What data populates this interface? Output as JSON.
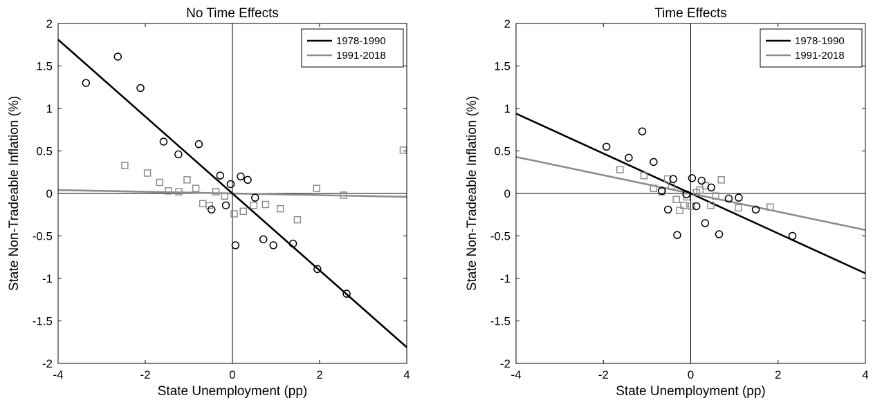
{
  "chart_data": [
    {
      "type": "scatter",
      "title": "No Time Effects",
      "xlabel": "State Unemployment (pp)",
      "ylabel": "State Non-Tradeable Inflation (%)",
      "xlim": [
        -4,
        4
      ],
      "ylim": [
        -2,
        2
      ],
      "xticks": [
        -4,
        -2,
        0,
        2,
        4
      ],
      "yticks": [
        -2,
        -1.5,
        -1,
        -0.5,
        0,
        0.5,
        1,
        1.5,
        2
      ],
      "xtick_labels": [
        "-4",
        "-2",
        "0",
        "2",
        "4"
      ],
      "ytick_labels": [
        "-2",
        "-1.5",
        "-1",
        "-0.5",
        "0",
        "0.5",
        "1",
        "1.5",
        "2"
      ],
      "grid": false,
      "legend_position": "top-right",
      "series": [
        {
          "name": "1978-1990",
          "color": "#000000",
          "marker": "circle",
          "fit_line": [
            [
              -4,
              1.81
            ],
            [
              4,
              -1.81
            ]
          ],
          "points": [
            [
              -3.36,
              1.3
            ],
            [
              -2.63,
              1.61
            ],
            [
              -2.11,
              1.24
            ],
            [
              -1.58,
              0.61
            ],
            [
              -1.24,
              0.46
            ],
            [
              -0.77,
              0.58
            ],
            [
              -0.28,
              0.21
            ],
            [
              -0.15,
              -0.14
            ],
            [
              -0.48,
              -0.19
            ],
            [
              -0.04,
              0.11
            ],
            [
              0.19,
              0.2
            ],
            [
              0.35,
              0.16
            ],
            [
              0.52,
              -0.05
            ],
            [
              0.07,
              -0.61
            ],
            [
              0.71,
              -0.54
            ],
            [
              0.94,
              -0.61
            ],
            [
              1.39,
              -0.59
            ],
            [
              1.95,
              -0.89
            ],
            [
              2.62,
              -1.18
            ]
          ]
        },
        {
          "name": "1991-2018",
          "color": "#8c8c8c",
          "marker": "square",
          "fit_line": [
            [
              -4,
              0.04
            ],
            [
              4,
              -0.04
            ]
          ],
          "points": [
            [
              -2.47,
              0.33
            ],
            [
              -1.95,
              0.24
            ],
            [
              -1.67,
              0.13
            ],
            [
              -1.47,
              0.03
            ],
            [
              -1.23,
              0.02
            ],
            [
              -1.04,
              0.16
            ],
            [
              -0.84,
              0.06
            ],
            [
              -0.68,
              -0.12
            ],
            [
              -0.53,
              -0.14
            ],
            [
              -0.38,
              0.02
            ],
            [
              -0.18,
              -0.03
            ],
            [
              0.04,
              -0.24
            ],
            [
              0.25,
              -0.21
            ],
            [
              0.49,
              -0.14
            ],
            [
              0.76,
              -0.13
            ],
            [
              1.1,
              -0.18
            ],
            [
              1.49,
              -0.31
            ],
            [
              1.93,
              0.06
            ],
            [
              2.55,
              -0.02
            ],
            [
              3.92,
              0.51
            ]
          ]
        }
      ]
    },
    {
      "type": "scatter",
      "title": "Time Effects",
      "xlabel": "State Unemployment (pp)",
      "ylabel": "State Non-Tradeable Inflation (%)",
      "xlim": [
        -4,
        4
      ],
      "ylim": [
        -2,
        2
      ],
      "xticks": [
        -4,
        -2,
        0,
        2,
        4
      ],
      "yticks": [
        -2,
        -1.5,
        -1,
        -0.5,
        0,
        0.5,
        1,
        1.5,
        2
      ],
      "xtick_labels": [
        "-4",
        "-2",
        "0",
        "2",
        "4"
      ],
      "ytick_labels": [
        "-2",
        "-1.5",
        "-1",
        "-0.5",
        "0",
        "0.5",
        "1",
        "1.5",
        "2"
      ],
      "grid": false,
      "legend_position": "top-right",
      "series": [
        {
          "name": "1978-1990",
          "color": "#000000",
          "marker": "circle",
          "fit_line": [
            [
              -4,
              0.94
            ],
            [
              4,
              -0.94
            ]
          ],
          "points": [
            [
              -1.93,
              0.55
            ],
            [
              -1.42,
              0.42
            ],
            [
              -1.11,
              0.73
            ],
            [
              -0.85,
              0.37
            ],
            [
              -0.66,
              0.03
            ],
            [
              -0.52,
              -0.19
            ],
            [
              -0.4,
              0.17
            ],
            [
              -0.31,
              -0.49
            ],
            [
              -0.1,
              -0.01
            ],
            [
              0.03,
              0.18
            ],
            [
              0.13,
              -0.15
            ],
            [
              0.25,
              0.15
            ],
            [
              0.33,
              -0.35
            ],
            [
              0.47,
              0.07
            ],
            [
              0.65,
              -0.48
            ],
            [
              0.87,
              -0.06
            ],
            [
              1.1,
              -0.05
            ],
            [
              1.49,
              -0.19
            ],
            [
              2.33,
              -0.5
            ]
          ]
        },
        {
          "name": "1991-2018",
          "color": "#8c8c8c",
          "marker": "square",
          "fit_line": [
            [
              -4,
              0.43
            ],
            [
              4,
              -0.43
            ]
          ],
          "points": [
            [
              -1.62,
              0.28
            ],
            [
              -1.07,
              0.21
            ],
            [
              -0.85,
              0.06
            ],
            [
              -0.67,
              0.02
            ],
            [
              -0.53,
              0.17
            ],
            [
              -0.44,
              0.09
            ],
            [
              -0.33,
              -0.07
            ],
            [
              -0.25,
              -0.2
            ],
            [
              -0.16,
              -0.14
            ],
            [
              -0.09,
              -0.04
            ],
            [
              0.02,
              -0.15
            ],
            [
              0.13,
              0.01
            ],
            [
              0.21,
              0.04
            ],
            [
              0.34,
              0.09
            ],
            [
              0.46,
              -0.14
            ],
            [
              0.57,
              -0.03
            ],
            [
              0.7,
              0.16
            ],
            [
              1.09,
              -0.17
            ],
            [
              1.82,
              -0.16
            ]
          ]
        }
      ]
    }
  ]
}
